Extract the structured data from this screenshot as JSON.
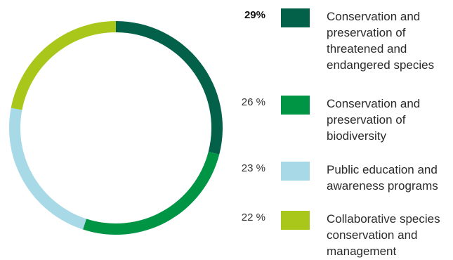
{
  "chart_data": {
    "type": "pie",
    "donut": true,
    "categories": [
      "Conservation and preservation of threatened and endangered species",
      "Conservation and preservation of biodiversity",
      "Public education and awareness programs",
      "Collaborative species conservation and management"
    ],
    "values": [
      29,
      26,
      23,
      22
    ],
    "value_labels": [
      "29%",
      "26 %",
      "23 %",
      "22 %"
    ],
    "colors": [
      "#036149",
      "#009445",
      "#a7d9e6",
      "#a9c71a"
    ],
    "legend_placement": "right"
  }
}
